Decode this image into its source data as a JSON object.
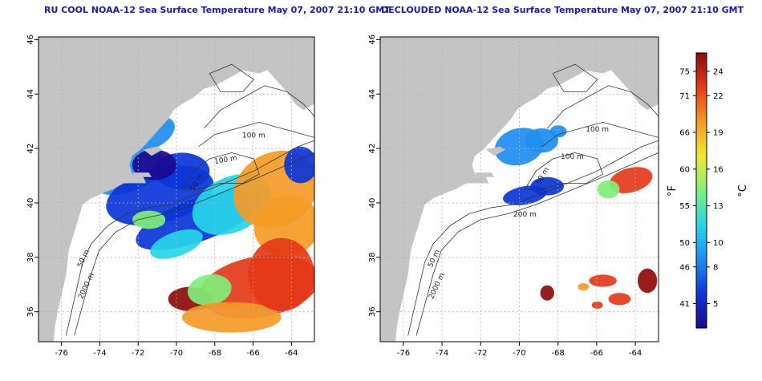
{
  "panels": [
    {
      "title": "RU COOL NOAA-12 Sea Surface Temperature May 07, 2007 21:10 GMT",
      "kind": "full",
      "contour_labels": [
        "100 m",
        "100 m",
        "50 m",
        "50 m",
        "2000 m"
      ]
    },
    {
      "title": "DECLOUDED NOAA-12 Sea Surface Temperature May 07, 2007 21:10 GMT",
      "kind": "declouded",
      "contour_labels": [
        "100 m",
        "100 m",
        "50 m",
        "200 m",
        "50 m",
        "2000 m"
      ]
    }
  ],
  "axes": {
    "x_ticks": [
      "-76",
      "-74",
      "-72",
      "-70",
      "-68",
      "-66",
      "-64"
    ],
    "y_ticks": [
      "46",
      "44",
      "42",
      "40",
      "38",
      "36"
    ],
    "x_range": [
      -77.2,
      -62.8
    ],
    "y_range": [
      34.9,
      46.1
    ]
  },
  "colorbar": {
    "f_label": "°F",
    "c_label": "°C",
    "f_ticks": [
      "75",
      "71",
      "66",
      "60",
      "55",
      "50",
      "46",
      "41"
    ],
    "c_ticks": [
      "24",
      "22",
      "19",
      "16",
      "13",
      "10",
      "8",
      "5"
    ],
    "c_values": [
      24,
      22,
      19,
      16,
      13,
      10,
      8,
      5
    ],
    "c_range": [
      3,
      25.5
    ],
    "colors": [
      "#1a0b8f",
      "#0a35d8",
      "#1e8ef0",
      "#25d6e8",
      "#7ef07a",
      "#f0e832",
      "#f49b26",
      "#e43a18",
      "#8f0a0a"
    ]
  },
  "colors": {
    "land": "#c4c4c4",
    "title": "#1a1aa8"
  }
}
